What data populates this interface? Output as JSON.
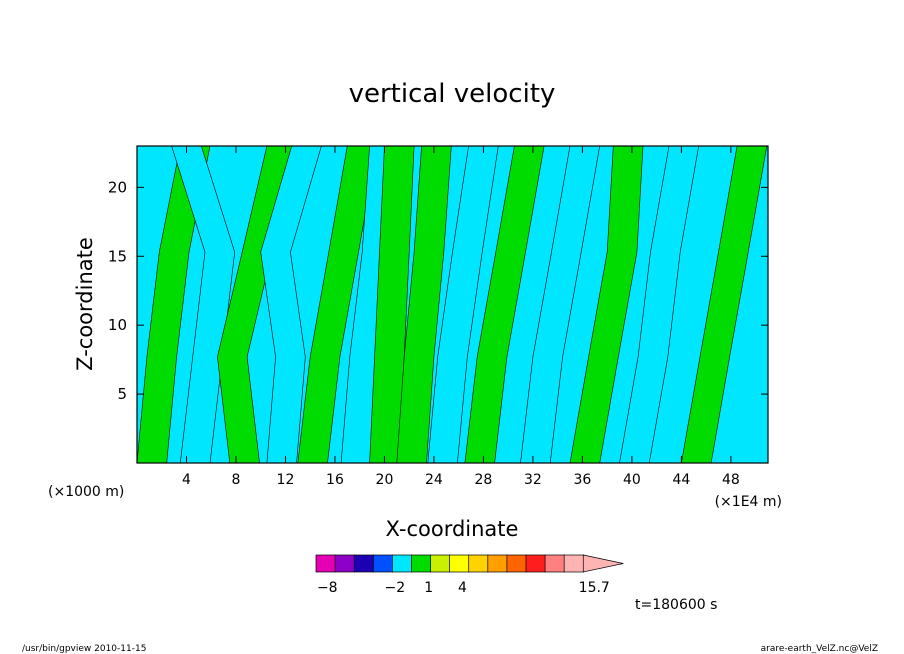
{
  "chart_data": {
    "type": "heatmap",
    "title": "vertical velocity",
    "xlabel": "X-coordinate",
    "ylabel": "Z-coordinate",
    "x_unit_left": "(×1000 m)",
    "x_unit_right": "(×1E4 m)",
    "xticks": [
      4,
      8,
      12,
      16,
      20,
      24,
      28,
      32,
      36,
      40,
      44,
      48
    ],
    "yticks": [
      5,
      10,
      15,
      20
    ],
    "xlim": [
      0,
      51
    ],
    "ylim": [
      0,
      23
    ],
    "time_label": "t=180600 s",
    "colorbar": {
      "labels": [
        {
          "value": -8,
          "text": "−8"
        },
        {
          "value": -2,
          "text": "−2"
        },
        {
          "value": 1,
          "text": "1"
        },
        {
          "value": 4,
          "text": "4"
        },
        {
          "value": 15.7,
          "text": "15.7"
        }
      ],
      "colors": [
        "#e600b4",
        "#8c00c8",
        "#1e00b4",
        "#0050ff",
        "#00e6ff",
        "#00dc00",
        "#c8f000",
        "#ffff00",
        "#ffd200",
        "#ffa000",
        "#ff6400",
        "#ff1e1e",
        "#ff8080",
        "#ffb4b4"
      ],
      "max_label": "15.7"
    },
    "field_colors": {
      "negative": "#00e6ff",
      "positive": "#00dc00",
      "strong": "#000000"
    },
    "bands": [
      {
        "x": [
          0,
          0.8,
          1.8,
          3.5
        ],
        "sign": "positive"
      },
      {
        "x": [
          3.5,
          4.5,
          5.5,
          2.8
        ],
        "sign": "negative"
      },
      {
        "x": [
          7.5,
          6.5,
          8.5,
          10.5
        ],
        "sign": "positive"
      },
      {
        "x": [
          10.5,
          11.2,
          10,
          12.5
        ],
        "sign": "negative"
      },
      {
        "x": [
          13,
          14,
          15.5,
          17
        ],
        "sign": "positive"
      },
      {
        "x": [
          16.5,
          17.2,
          18.2,
          18.8
        ],
        "sign": "negative"
      },
      {
        "x": [
          18.8,
          19.2,
          19.6,
          20
        ],
        "sign": "positive"
      },
      {
        "x": [
          21,
          21.6,
          22.4,
          23
        ],
        "sign": "positive"
      },
      {
        "x": [
          23.5,
          24.3,
          25.5,
          26.8
        ],
        "sign": "negative"
      },
      {
        "x": [
          26.5,
          27.5,
          29,
          30.5
        ],
        "sign": "positive"
      },
      {
        "x": [
          31,
          32,
          33.5,
          35
        ],
        "sign": "negative"
      },
      {
        "x": [
          35,
          36.5,
          38,
          38.5
        ],
        "sign": "positive"
      },
      {
        "x": [
          39,
          40.5,
          41.5,
          43
        ],
        "sign": "negative"
      },
      {
        "x": [
          44,
          45.5,
          47,
          48.5
        ],
        "sign": "positive"
      }
    ]
  },
  "footer": {
    "left": "/usr/bin/gpview   2010-11-15",
    "right": "arare-earth_VelZ.nc@VelZ"
  }
}
